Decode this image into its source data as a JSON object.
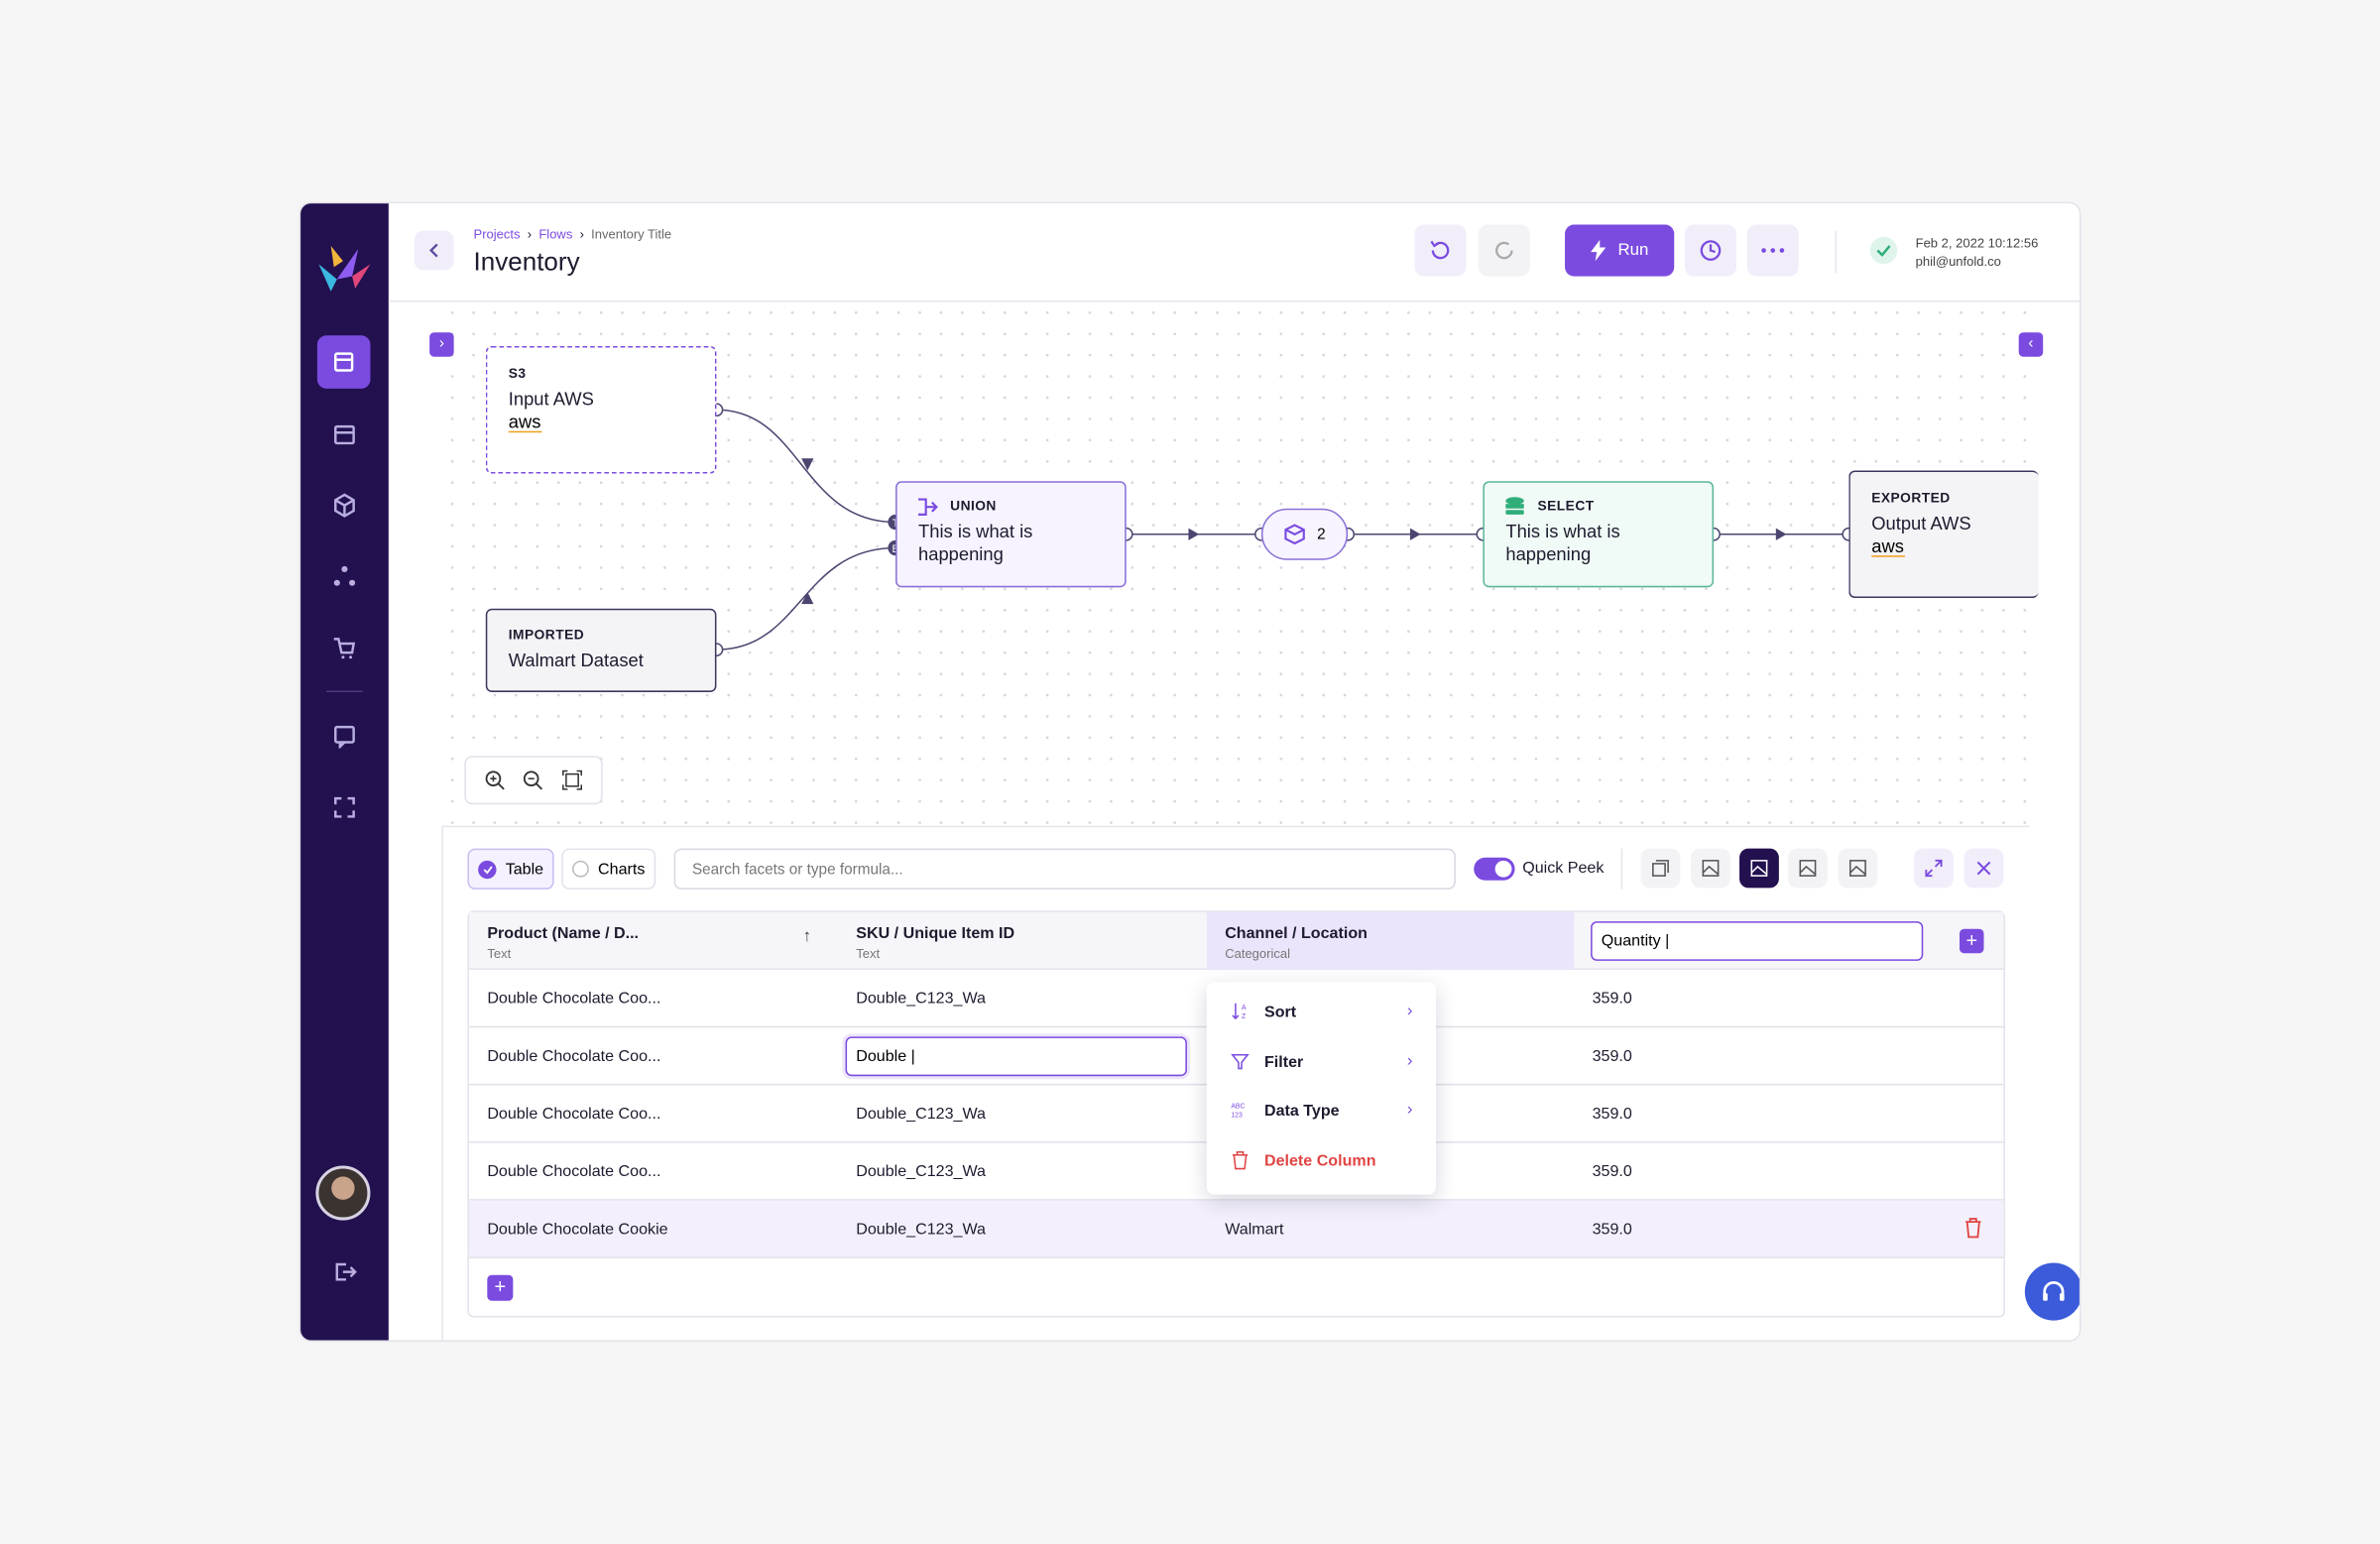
{
  "breadcrumb": [
    "Projects",
    "Flows",
    "Inventory Title"
  ],
  "title": "Inventory",
  "run_label": "Run",
  "status": {
    "date": "Feb 2, 2022  10:12:56",
    "email": "phil@unfold.co"
  },
  "nodes": [
    {
      "tag": "S3",
      "label": "Input AWS",
      "logo": "aws"
    },
    {
      "tag": "IMPORTED",
      "label": "Walmart Dataset"
    },
    {
      "tag": "UNION",
      "label": "This is what is happening"
    },
    {
      "count": "2"
    },
    {
      "tag": "SELECT",
      "label": "This is what is happening"
    },
    {
      "tag": "EXPORTED",
      "label": "Output AWS",
      "logo": "aws"
    }
  ],
  "ports": [
    "T",
    "B"
  ],
  "tabs": [
    "Table",
    "Charts"
  ],
  "search_placeholder": "Search facets or type formula...",
  "quick_peek": "Quick Peek",
  "table": {
    "columns": [
      {
        "name": "Product (Name / D...",
        "type": "Text"
      },
      {
        "name": "SKU / Unique Item ID",
        "type": "Text"
      },
      {
        "name": "Channel / Location",
        "type": "Categorical"
      },
      {
        "name": "Quantity |"
      }
    ],
    "rows": [
      [
        "Double Chocolate Coo...",
        "Double_C123_Wa",
        null,
        "359.0"
      ],
      [
        "Double Chocolate Coo...",
        "Double |",
        null,
        "359.0"
      ],
      [
        "Double Chocolate Coo...",
        "Double_C123_Wa",
        null,
        "359.0"
      ],
      [
        "Double Chocolate Coo...",
        "Double_C123_Wa",
        null,
        "359.0"
      ],
      [
        "Double Chocolate Cookie",
        "Double_C123_Wa",
        "Walmart",
        "359.0"
      ]
    ]
  },
  "column_menu": [
    "Sort",
    "Filter",
    "Data Type",
    "Delete Column"
  ]
}
